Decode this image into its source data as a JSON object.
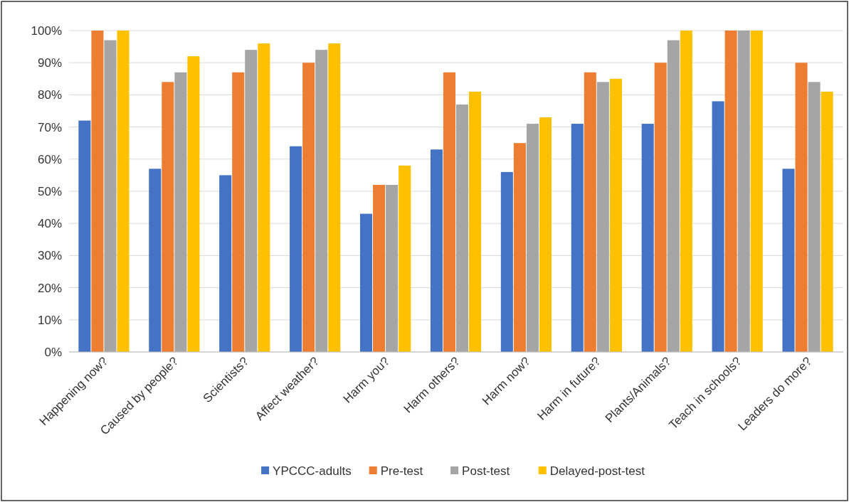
{
  "chart_data": {
    "type": "bar",
    "categories": [
      "Happening now?",
      "Caused by people?",
      "Scientists?",
      "Affect weather?",
      "Harm you?",
      "Harm others?",
      "Harm now?",
      "Harm in future?",
      "Plants/Animals?",
      "Teach in schools?",
      "Leaders do more?"
    ],
    "series": [
      {
        "name": "YPCCC-adults",
        "color": "#4472c4",
        "values": [
          72,
          57,
          55,
          64,
          43,
          63,
          56,
          71,
          71,
          78,
          57
        ]
      },
      {
        "name": "Pre-test",
        "color": "#ed7d31",
        "values": [
          100,
          84,
          87,
          90,
          52,
          87,
          65,
          87,
          90,
          100,
          90
        ]
      },
      {
        "name": "Post-test",
        "color": "#a5a5a5",
        "values": [
          97,
          87,
          94,
          94,
          52,
          77,
          71,
          84,
          97,
          100,
          84
        ]
      },
      {
        "name": "Delayed-post-test",
        "color": "#ffc000",
        "values": [
          100,
          92,
          96,
          96,
          58,
          81,
          73,
          85,
          100,
          100,
          81
        ]
      }
    ],
    "ylim": [
      0,
      100
    ],
    "yticks": [
      {
        "value": 0,
        "label": "0%"
      },
      {
        "value": 10,
        "label": "10%"
      },
      {
        "value": 20,
        "label": "20%"
      },
      {
        "value": 30,
        "label": "30%"
      },
      {
        "value": 40,
        "label": "40%"
      },
      {
        "value": 50,
        "label": "50%"
      },
      {
        "value": 60,
        "label": "60%"
      },
      {
        "value": 70,
        "label": "70%"
      },
      {
        "value": 80,
        "label": "80%"
      },
      {
        "value": 90,
        "label": "90%"
      },
      {
        "value": 100,
        "label": "100%"
      }
    ],
    "grid": "y",
    "legend": "bottom"
  }
}
